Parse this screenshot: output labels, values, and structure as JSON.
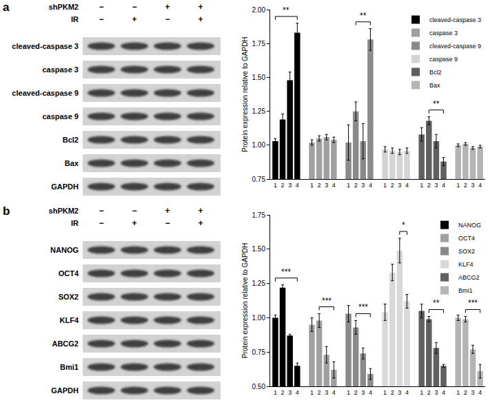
{
  "blots": [
    {
      "panel": "a",
      "conditions": [
        {
          "label": "shPKM2",
          "marks": [
            "−",
            "−",
            "+",
            "+"
          ]
        },
        {
          "label": "IR",
          "marks": [
            "−",
            "+",
            "−",
            "+"
          ]
        }
      ],
      "rows": [
        "cleaved-caspase 3",
        "caspase 3",
        "cleaved-caspase 9",
        "caspase 9",
        "Bcl2",
        "Bax",
        "GAPDH"
      ]
    },
    {
      "panel": "b",
      "conditions": [
        {
          "label": "shPKM2",
          "marks": [
            "−",
            "−",
            "+",
            "+"
          ]
        },
        {
          "label": "IR",
          "marks": [
            "−",
            "+",
            "−",
            "+"
          ]
        }
      ],
      "rows": [
        "NANOG",
        "OCT4",
        "SOX2",
        "KLF4",
        "ABCG2",
        "Bmi1",
        "GAPDH"
      ]
    }
  ],
  "chart_data": [
    {
      "type": "bar",
      "ylabel": "Protein expression relative to GAPDH",
      "ylim": [
        0.75,
        2.0
      ],
      "yticks": [
        {
          "value": 0.75,
          "label": "0.75"
        },
        {
          "value": 1.0,
          "label": "1.00"
        },
        {
          "value": 1.25,
          "label": "1.25"
        },
        {
          "value": 1.5,
          "label": "1.50"
        },
        {
          "value": 1.75,
          "label": "1.75"
        },
        {
          "value": 2.0,
          "label": "2.00"
        }
      ],
      "grid": false,
      "legend": "top right",
      "categories": [
        "1",
        "2",
        "3",
        "4"
      ],
      "series": [
        {
          "name": "cleaved-caspase 3",
          "color": "#000000",
          "values": [
            1.03,
            1.19,
            1.48,
            1.83
          ],
          "error": [
            0.02,
            0.04,
            0.06,
            0.07
          ]
        },
        {
          "name": "caspase 3",
          "color": "#a0a0a0",
          "values": [
            1.02,
            1.05,
            1.06,
            1.04
          ],
          "error": [
            0.02,
            0.02,
            0.02,
            0.02
          ]
        },
        {
          "name": "cleaved-caspase 9",
          "color": "#8a8a8a",
          "values": [
            1.02,
            1.25,
            1.03,
            1.78
          ],
          "error": [
            0.13,
            0.07,
            0.13,
            0.08
          ]
        },
        {
          "name": "caspase 9",
          "color": "#d4d4d4",
          "values": [
            0.97,
            0.96,
            0.95,
            0.96
          ],
          "error": [
            0.02,
            0.02,
            0.02,
            0.02
          ]
        },
        {
          "name": "Bcl2",
          "color": "#606060",
          "values": [
            1.08,
            1.18,
            1.03,
            0.88
          ],
          "error": [
            0.05,
            0.03,
            0.05,
            0.03
          ]
        },
        {
          "name": "Bax",
          "color": "#b4b4b4",
          "values": [
            1.0,
            1.01,
            0.98,
            0.99
          ],
          "error": [
            0.01,
            0.01,
            0.01,
            0.01
          ]
        }
      ],
      "annotations": [
        {
          "series": "cleaved-caspase 3",
          "from": "1",
          "to": "4",
          "text": "**"
        },
        {
          "series": "cleaved-caspase 9",
          "from": "2",
          "to": "4",
          "text": "**"
        },
        {
          "series": "Bcl2",
          "from": "2",
          "to": "4",
          "text": "**"
        }
      ]
    },
    {
      "type": "bar",
      "ylabel": "Protein expression relative to GAPDH",
      "ylim": [
        0.5,
        1.75
      ],
      "yticks": [
        {
          "value": 0.5,
          "label": "0.50"
        },
        {
          "value": 0.75,
          "label": "0.75"
        },
        {
          "value": 1.0,
          "label": "1.00"
        },
        {
          "value": 1.25,
          "label": "1.25"
        },
        {
          "value": 1.5,
          "label": "1.50"
        },
        {
          "value": 1.75,
          "label": "1.75"
        }
      ],
      "grid": false,
      "legend": "top right",
      "categories": [
        "1",
        "2",
        "3",
        "4"
      ],
      "series": [
        {
          "name": "NANOG",
          "color": "#000000",
          "values": [
            1.0,
            1.22,
            0.87,
            0.65
          ],
          "error": [
            0.02,
            0.02,
            0.01,
            0.02
          ]
        },
        {
          "name": "OCT4",
          "color": "#a0a0a0",
          "values": [
            0.95,
            0.98,
            0.73,
            0.62
          ],
          "error": [
            0.05,
            0.05,
            0.06,
            0.06
          ]
        },
        {
          "name": "SOX2",
          "color": "#8a8a8a",
          "values": [
            1.03,
            0.93,
            0.74,
            0.59
          ],
          "error": [
            0.06,
            0.05,
            0.04,
            0.04
          ]
        },
        {
          "name": "KLF4",
          "color": "#d8d8d8",
          "values": [
            1.04,
            1.33,
            1.49,
            1.12
          ],
          "error": [
            0.06,
            0.06,
            0.09,
            0.05
          ]
        },
        {
          "name": "ABCG2",
          "color": "#606060",
          "values": [
            1.05,
            0.99,
            0.78,
            0.65
          ],
          "error": [
            0.05,
            0.02,
            0.04,
            0.01
          ]
        },
        {
          "name": "Bmi1",
          "color": "#b4b4b4",
          "values": [
            1.0,
            0.99,
            0.77,
            0.61
          ],
          "error": [
            0.02,
            0.02,
            0.03,
            0.05
          ]
        }
      ],
      "annotations": [
        {
          "series": "NANOG",
          "from": "1",
          "to": "4",
          "text": "***"
        },
        {
          "series": "OCT4",
          "from": "2",
          "to": "4",
          "text": "***"
        },
        {
          "series": "SOX2",
          "from": "2",
          "to": "4",
          "text": "***"
        },
        {
          "series": "KLF4",
          "from": "3",
          "to": "4",
          "text": "*"
        },
        {
          "series": "ABCG2",
          "from": "2",
          "to": "4",
          "text": "**"
        },
        {
          "series": "Bmi1",
          "from": "2",
          "to": "4",
          "text": "***"
        }
      ]
    }
  ]
}
